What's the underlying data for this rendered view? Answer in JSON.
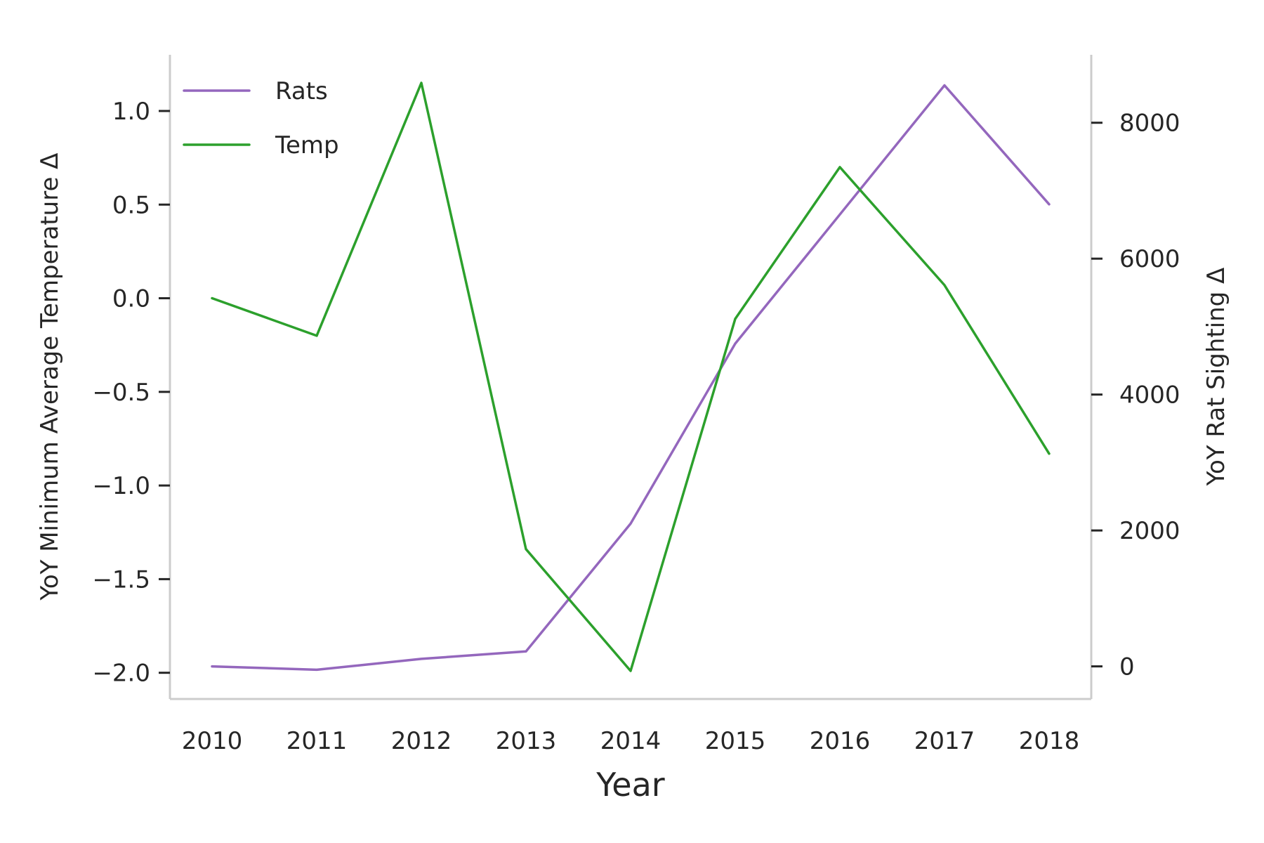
{
  "chart_data": {
    "type": "line",
    "xlabel": "Year",
    "ylabel": "YoY Minimum Average Temperature Δ",
    "y2label": "YoY Rat Sighting Δ",
    "x": [
      2010,
      2011,
      2012,
      2013,
      2014,
      2015,
      2016,
      2017,
      2018
    ],
    "x_ticks": [
      "2010",
      "2011",
      "2012",
      "2013",
      "2014",
      "2015",
      "2016",
      "2017",
      "2018"
    ],
    "ylim": [
      -2.14,
      1.3
    ],
    "y_ticks": [
      -2.0,
      -1.5,
      -1.0,
      -0.5,
      0.0,
      0.5,
      1.0
    ],
    "y_tick_labels": [
      "−2.0",
      "−1.5",
      "−1.0",
      "−0.5",
      "0.0",
      "0.5",
      "1.0"
    ],
    "y2lim": [
      -480,
      9000
    ],
    "y2_ticks": [
      0,
      2000,
      4000,
      6000,
      8000
    ],
    "y2_tick_labels": [
      "0",
      "2000",
      "4000",
      "6000",
      "8000"
    ],
    "grid": false,
    "legend_position": "top-left",
    "series": [
      {
        "name": "Rats",
        "axis": "right",
        "color": "#9467bd",
        "values": [
          0,
          -50,
          110,
          220,
          2100,
          4750,
          6650,
          8550,
          6800
        ]
      },
      {
        "name": "Temp",
        "axis": "left",
        "color": "#2ca02c",
        "values": [
          0.0,
          -0.2,
          1.15,
          -1.34,
          -1.99,
          -0.11,
          0.7,
          0.07,
          -0.83
        ]
      }
    ]
  }
}
